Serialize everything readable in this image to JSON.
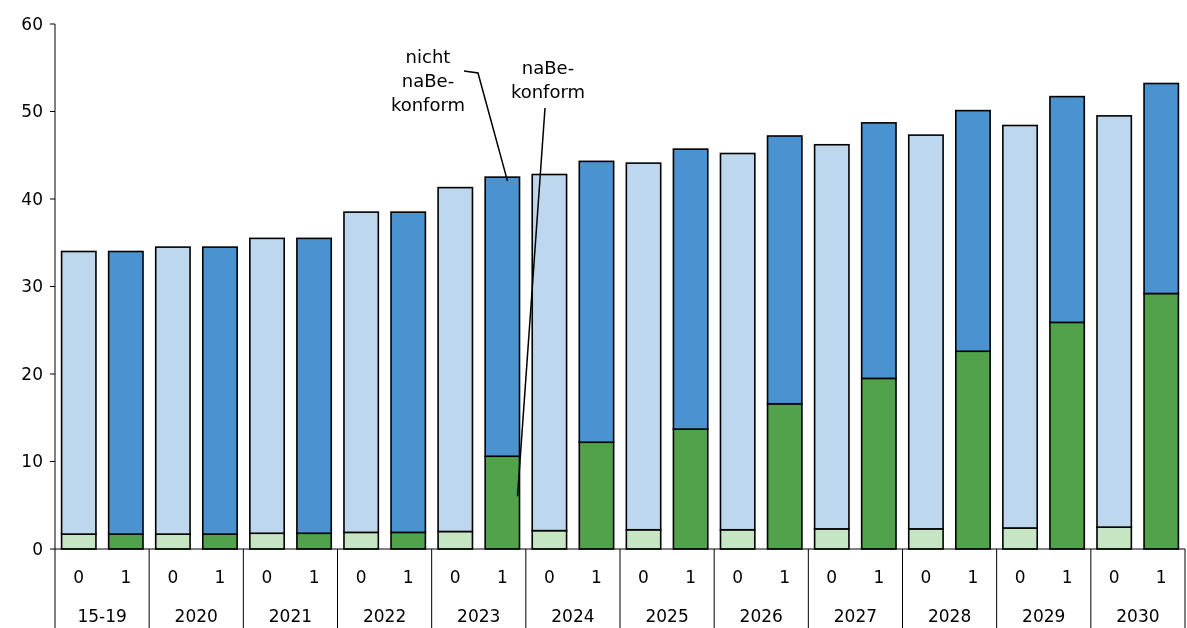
{
  "chart_data": {
    "type": "bar",
    "stacked": true,
    "categories": [
      "0",
      "1",
      "0",
      "1",
      "0",
      "1",
      "0",
      "1",
      "0",
      "1",
      "0",
      "1",
      "0",
      "1",
      "0",
      "1",
      "0",
      "1",
      "0",
      "1",
      "0",
      "1",
      "0",
      "1"
    ],
    "series": [
      {
        "name": "naBe-konform",
        "colors": [
          "#c6e5c3",
          "#52a24c",
          "#c6e5c3",
          "#52a24c",
          "#c6e5c3",
          "#52a24c",
          "#c6e5c3",
          "#52a24c",
          "#c6e5c3",
          "#52a24c",
          "#c6e5c3",
          "#52a24c",
          "#c6e5c3",
          "#52a24c",
          "#c6e5c3",
          "#52a24c",
          "#c6e5c3",
          "#52a24c",
          "#c6e5c3",
          "#52a24c",
          "#c6e5c3",
          "#52a24c",
          "#c6e5c3",
          "#52a24c"
        ],
        "values": [
          1.7,
          1.7,
          1.7,
          1.7,
          1.8,
          1.8,
          1.9,
          1.9,
          2.0,
          10.6,
          2.1,
          12.2,
          2.2,
          13.7,
          2.2,
          16.6,
          2.3,
          19.5,
          2.3,
          22.6,
          2.4,
          25.9,
          2.5,
          29.2
        ]
      },
      {
        "name": "nicht naBe-konform",
        "colors": [
          "#bdd7ee",
          "#4a93d0",
          "#bdd7ee",
          "#4a93d0",
          "#bdd7ee",
          "#4a93d0",
          "#bdd7ee",
          "#4a93d0",
          "#bdd7ee",
          "#4a93d0",
          "#bdd7ee",
          "#4a93d0",
          "#bdd7ee",
          "#4a93d0",
          "#bdd7ee",
          "#4a93d0",
          "#bdd7ee",
          "#4a93d0",
          "#bdd7ee",
          "#4a93d0",
          "#bdd7ee",
          "#4a93d0",
          "#bdd7ee",
          "#4a93d0"
        ],
        "values": [
          32.3,
          32.3,
          32.8,
          32.8,
          33.7,
          33.7,
          36.6,
          36.6,
          39.3,
          31.9,
          40.7,
          32.1,
          41.9,
          32.0,
          43.0,
          30.6,
          43.9,
          29.2,
          45.0,
          27.5,
          46.0,
          25.8,
          47.0,
          24.0
        ]
      }
    ],
    "annotations": [
      "15-19",
      "2020",
      "2021",
      "2022",
      "2023",
      "2024",
      "2025",
      "2026",
      "2027",
      "2028",
      "2029",
      "2030"
    ],
    "ylim": [
      0,
      60
    ],
    "yticks": [
      0,
      10,
      20,
      30,
      40,
      50,
      60
    ],
    "grid": false
  }
}
